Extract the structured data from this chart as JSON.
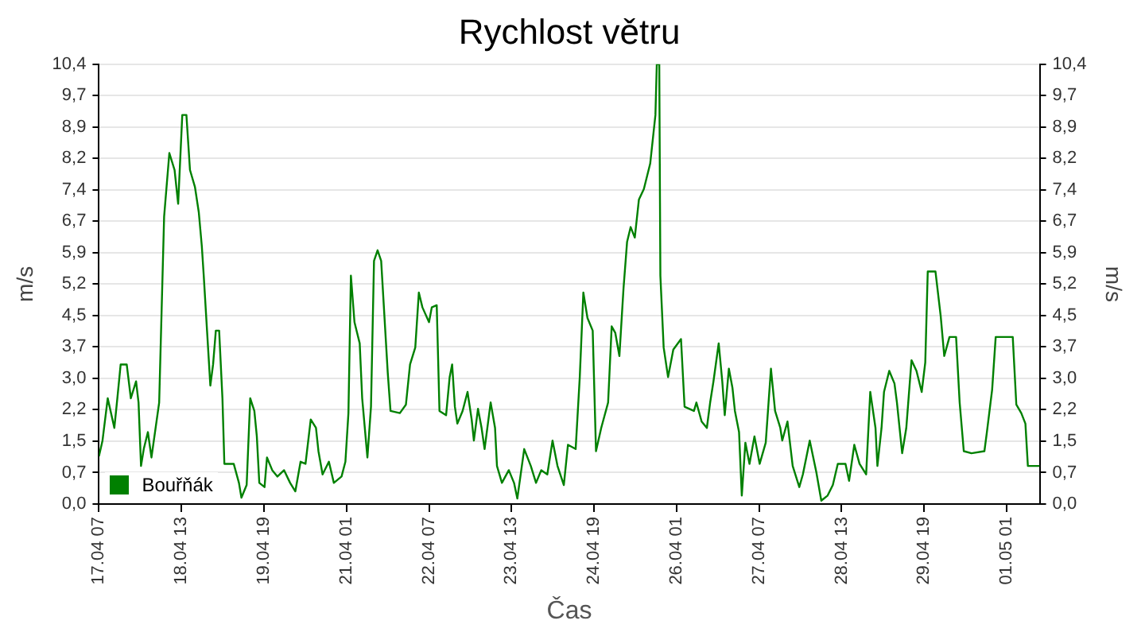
{
  "chart_data": {
    "type": "line",
    "title": "Rychlost větru",
    "xlabel": "Čas",
    "ylabel": "m/s",
    "y2label": "m/s",
    "x": [
      "--04-17T07:00",
      "--04-17T08:18",
      "--04-17T10:12",
      "--04-17T12:36",
      "--04-17T13:42",
      "--04-17T14:54",
      "--04-17T17:06",
      "--04-17T18:36",
      "--04-17T20:30",
      "--04-17T21:24",
      "--04-17T22:18",
      "--04-17T23:18",
      "--04-18T00:48",
      "--04-18T02:06",
      "--04-18T04:54",
      "--04-18T05:48",
      "--04-18T06:42",
      "--04-18T08:36",
      "--04-18T10:30",
      "--04-18T11:48",
      "--04-18T13:18",
      "--04-18T14:48",
      "--04-18T16:06",
      "--04-18T17:54",
      "--04-18T19:18",
      "--04-18T20:24",
      "--04-18T21:06",
      "--04-18T22:18",
      "--04-18T23:30",
      "--04-19T00:30",
      "--04-19T01:30",
      "--04-19T02:42",
      "--04-19T03:54",
      "--04-19T04:36",
      "--04-19T08:00",
      "--04-19T09:54",
      "--04-19T10:48",
      "--04-19T12:42",
      "--04-19T14:00",
      "--04-19T15:30",
      "--04-19T16:24",
      "--04-19T17:18",
      "--04-19T19:12",
      "--04-19T20:06",
      "--04-19T22:00",
      "--04-19T23:54",
      "--04-20T02:18",
      "--04-20T04:30",
      "--04-20T06:24",
      "--04-20T08:18",
      "--04-20T10:06",
      "--04-20T12:00",
      "--04-20T13:54",
      "--04-20T14:48",
      "--04-20T16:18",
      "--04-20T18:36",
      "--04-20T20:24",
      "--04-20T23:12",
      "--04-21T00:36",
      "--04-21T01:42",
      "--04-21T02:36",
      "--04-21T03:54",
      "--04-21T05:48",
      "--04-21T06:42",
      "--04-21T08:36",
      "--04-21T09:54",
      "--04-21T11:00",
      "--04-21T12:18",
      "--04-21T13:36",
      "--04-21T16:00",
      "--04-21T17:00",
      "--04-21T20:24",
      "--04-21T22:36",
      "--04-22T00:06",
      "--04-22T02:00",
      "--04-22T03:18",
      "--04-22T04:36",
      "--04-22T07:00",
      "--04-22T08:00",
      "--04-22T09:48",
      "--04-22T10:48",
      "--04-22T13:12",
      "--04-22T14:30",
      "--04-22T15:24",
      "--04-22T16:24",
      "--04-22T17:18",
      "--04-22T19:12",
      "--04-22T21:00",
      "--04-22T22:30",
      "--04-22T23:18",
      "--04-23T00:48",
      "--04-23T02:06",
      "--04-23T03:12",
      "--04-23T05:24",
      "--04-23T07:00",
      "--04-23T07:42",
      "--04-23T09:30",
      "--04-23T12:00",
      "--04-23T13:54",
      "--04-23T15:06",
      "--04-23T17:36",
      "--04-23T20:00",
      "--04-23T21:54",
      "--04-23T23:48",
      "--04-24T02:00",
      "--04-24T03:54",
      "--04-24T05:42",
      "--04-24T08:00",
      "--04-24T09:30",
      "--04-24T12:18",
      "--04-24T13:48",
      "--04-24T15:06",
      "--04-24T16:36",
      "--04-24T18:30",
      "--04-24T19:42",
      "--04-24T21:36",
      "--04-25T00:06",
      "--04-25T01:24",
      "--04-25T02:42",
      "--04-25T04:12",
      "--04-25T05:42",
      "--04-25T07:00",
      "--04-25T08:18",
      "--04-25T09:48",
      "--04-25T11:18",
      "--04-25T13:06",
      "--04-25T15:24",
      "--04-25T17:18",
      "--04-25T17:48",
      "--04-25T18:42",
      "--04-25T19:06",
      "--04-25T20:18",
      "--04-25T21:54",
      "--04-25T23:48",
      "--04-26T02:36",
      "--04-26T03:54",
      "--04-26T07:18",
      "--04-26T08:12",
      "--04-26T10:06",
      "--04-26T12:00",
      "--04-26T13:12",
      "--04-26T14:24",
      "--04-26T16:18",
      "--04-26T17:36",
      "--04-26T18:30",
      "--04-26T20:00",
      "--04-26T21:18",
      "--04-26T22:12",
      "--04-26T23:42",
      "--04-27T00:42",
      "--04-27T02:00",
      "--04-27T03:30",
      "--04-27T05:18",
      "--04-27T07:12",
      "--04-27T09:24",
      "--04-27T11:18",
      "--04-27T12:48",
      "--04-27T14:42",
      "--04-27T15:24",
      "--04-27T17:18",
      "--04-27T19:12",
      "--04-27T21:36",
      "--04-27T22:54",
      "--04-28T01:24",
      "--04-28T03:48",
      "--04-28T05:36",
      "--04-28T07:54",
      "--04-28T09:48",
      "--04-28T11:36",
      "--04-28T14:24",
      "--04-28T15:42",
      "--04-28T17:36",
      "--04-28T19:30",
      "--04-28T21:54",
      "--04-28T23:24",
      "--04-29T01:18",
      "--04-29T02:00",
      "--04-29T03:30",
      "--04-29T04:24",
      "--04-29T06:18",
      "--04-29T08:12",
      "--04-29T09:06",
      "--04-29T11:00",
      "--04-29T12:30",
      "--04-29T14:24",
      "--04-29T16:12",
      "--04-29T18:06",
      "--04-29T19:24",
      "--04-29T20:18",
      "--04-29T23:06",
      "--04-30T01:00",
      "--04-30T02:18",
      "--04-30T04:12",
      "--04-30T06:36",
      "--04-30T07:54",
      "--04-30T09:24",
      "--04-30T12:12",
      "--04-30T16:54",
      "--04-30T17:48",
      "--04-30T19:42",
      "--04-30T21:00",
      "--05-01T03:12",
      "--05-01T04:30",
      "--05-01T06:18",
      "--05-01T07:48",
      "--05-01T08:42",
      "--05-01T13:00"
    ],
    "series": [
      {
        "name": "Bouřňák",
        "color": "#008000",
        "values": [
          1.13,
          1.5,
          2.5,
          1.8,
          2.5,
          3.3,
          3.3,
          2.5,
          2.9,
          2.4,
          0.9,
          1.3,
          1.7,
          1.1,
          2.4,
          4.6,
          6.8,
          8.3,
          7.9,
          7.1,
          9.2,
          9.2,
          7.9,
          7.5,
          6.9,
          6.1,
          5.4,
          4.1,
          2.8,
          3.3,
          4.1,
          4.1,
          2.5,
          0.95,
          0.95,
          0.5,
          0.15,
          0.45,
          2.5,
          2.2,
          1.6,
          0.5,
          0.4,
          1.1,
          0.8,
          0.65,
          0.8,
          0.5,
          0.3,
          1.0,
          0.95,
          2.0,
          1.8,
          1.25,
          0.7,
          1.0,
          0.5,
          0.65,
          1.0,
          2.15,
          5.4,
          4.3,
          3.8,
          2.5,
          1.1,
          2.3,
          5.75,
          6.0,
          5.75,
          3.1,
          2.2,
          2.15,
          2.35,
          3.3,
          3.7,
          5.0,
          4.65,
          4.3,
          4.65,
          4.7,
          2.2,
          2.1,
          3.0,
          3.3,
          2.3,
          1.9,
          2.2,
          2.65,
          2.0,
          1.5,
          2.25,
          1.8,
          1.3,
          2.4,
          1.8,
          0.9,
          0.5,
          0.8,
          0.5,
          0.13,
          1.3,
          0.9,
          0.5,
          0.8,
          0.7,
          1.5,
          0.9,
          0.45,
          1.4,
          1.3,
          3.0,
          5.0,
          4.4,
          4.1,
          1.25,
          1.8,
          2.4,
          4.2,
          4.05,
          3.5,
          5.1,
          6.2,
          6.55,
          6.3,
          7.2,
          7.45,
          8.05,
          9.2,
          10.4,
          10.4,
          5.4,
          3.7,
          3.0,
          3.65,
          3.9,
          2.3,
          2.2,
          2.4,
          1.95,
          1.8,
          2.4,
          2.9,
          3.8,
          2.9,
          2.1,
          3.2,
          2.75,
          2.2,
          1.7,
          0.2,
          1.45,
          0.95,
          1.6,
          0.95,
          1.45,
          3.2,
          2.2,
          1.8,
          1.5,
          1.95,
          0.9,
          0.4,
          0.7,
          1.5,
          0.75,
          0.08,
          0.2,
          0.45,
          0.95,
          0.95,
          0.55,
          1.4,
          0.95,
          0.7,
          2.65,
          1.8,
          0.9,
          1.8,
          2.65,
          3.15,
          2.85,
          2.4,
          1.2,
          1.8,
          3.4,
          3.15,
          2.65,
          3.35,
          5.5,
          5.5,
          4.45,
          3.5,
          3.95,
          3.95,
          2.4,
          1.25,
          1.2,
          1.25,
          1.7,
          2.7,
          3.95,
          3.95,
          2.35,
          2.15,
          1.9,
          0.9,
          0.9
        ]
      }
    ],
    "xlim": [
      "--04-17T07:00",
      "--05-01T13:00"
    ],
    "xticks": [
      {
        "value": "--04-17T07:00",
        "label": "17.04 07"
      },
      {
        "value": "--04-18T13:00",
        "label": "18.04 13"
      },
      {
        "value": "--04-19T19:00",
        "label": "19.04 19"
      },
      {
        "value": "--04-21T01:00",
        "label": "21.04 01"
      },
      {
        "value": "--04-22T07:00",
        "label": "22.04 07"
      },
      {
        "value": "--04-23T13:00",
        "label": "23.04 13"
      },
      {
        "value": "--04-24T19:00",
        "label": "24.04 19"
      },
      {
        "value": "--04-26T01:00",
        "label": "26.04 01"
      },
      {
        "value": "--04-27T07:00",
        "label": "27.04 07"
      },
      {
        "value": "--04-28T13:00",
        "label": "28.04 13"
      },
      {
        "value": "--04-29T19:00",
        "label": "29.04 19"
      },
      {
        "value": "--05-01T01:00",
        "label": "01.05 01"
      }
    ],
    "ylim": [
      0,
      10.4
    ],
    "yticks": [
      {
        "value": 0,
        "label": "0,0"
      },
      {
        "value": 0.743,
        "label": "0,7"
      },
      {
        "value": 1.486,
        "label": "1,5"
      },
      {
        "value": 2.229,
        "label": "2,2"
      },
      {
        "value": 2.971,
        "label": "3,0"
      },
      {
        "value": 3.714,
        "label": "3,7"
      },
      {
        "value": 4.457,
        "label": "4,5"
      },
      {
        "value": 5.2,
        "label": "5,2"
      },
      {
        "value": 5.943,
        "label": "5,9"
      },
      {
        "value": 6.686,
        "label": "6,7"
      },
      {
        "value": 7.429,
        "label": "7,4"
      },
      {
        "value": 8.171,
        "label": "8,2"
      },
      {
        "value": 8.914,
        "label": "8,9"
      },
      {
        "value": 9.657,
        "label": "9,7"
      },
      {
        "value": 10.4,
        "label": "10,4"
      }
    ],
    "y2lim": [
      0,
      10.4
    ],
    "y2ticks": [
      {
        "value": 0,
        "label": "0,0"
      },
      {
        "value": 0.743,
        "label": "0,7"
      },
      {
        "value": 1.486,
        "label": "1,5"
      },
      {
        "value": 2.229,
        "label": "2,2"
      },
      {
        "value": 2.971,
        "label": "3,0"
      },
      {
        "value": 3.714,
        "label": "3,7"
      },
      {
        "value": 4.457,
        "label": "4,5"
      },
      {
        "value": 5.2,
        "label": "5,2"
      },
      {
        "value": 5.943,
        "label": "5,9"
      },
      {
        "value": 6.686,
        "label": "6,7"
      },
      {
        "value": 7.429,
        "label": "7,4"
      },
      {
        "value": 8.171,
        "label": "8,2"
      },
      {
        "value": 8.914,
        "label": "8,9"
      },
      {
        "value": 9.657,
        "label": "9,7"
      },
      {
        "value": 10.4,
        "label": "10,4"
      }
    ],
    "grid": "y",
    "legend": "bottom left",
    "marker": "none",
    "line_style": "solid"
  }
}
